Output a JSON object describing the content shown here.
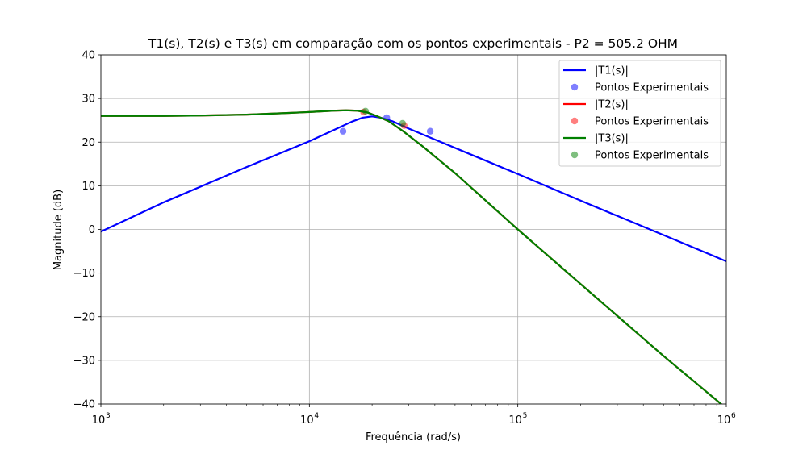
{
  "chart_data": {
    "type": "line",
    "title": "T1(s), T2(s) e T3(s) em comparação com os pontos experimentais - P2 = 505.2 OHM",
    "xlabel": "Frequência (rad/s)",
    "ylabel": "Magnitude (dB)",
    "xscale": "log",
    "xlim": [
      1000,
      1000000
    ],
    "ylim": [
      -40,
      40
    ],
    "x_ticks": [
      {
        "base": "10",
        "exp": "3"
      },
      {
        "base": "10",
        "exp": "4"
      },
      {
        "base": "10",
        "exp": "5"
      },
      {
        "base": "10",
        "exp": "6"
      }
    ],
    "y_ticks": [
      "40",
      "30",
      "20",
      "10",
      "0",
      "−10",
      "−20",
      "−30",
      "−40"
    ],
    "grid": true,
    "legend_position": "top-right",
    "series": [
      {
        "name": "|T1(s)|",
        "kind": "line",
        "color": "#0000ff",
        "x": [
          1000,
          2000,
          5000,
          10000,
          13000,
          16000,
          18000,
          20000,
          22000,
          25000,
          30000,
          40000,
          60000,
          100000,
          200000,
          500000,
          1000000
        ],
        "y": [
          -0.5,
          6.2,
          14.3,
          20.2,
          22.7,
          24.7,
          25.6,
          25.9,
          25.6,
          24.8,
          23.1,
          20.6,
          17.1,
          12.7,
          6.6,
          -1.3,
          -7.3
        ]
      },
      {
        "name": "Pontos Experimentais",
        "kind": "points",
        "color": "#0000ff",
        "x": [
          14500,
          23500,
          38000
        ],
        "y": [
          22.5,
          25.6,
          22.5
        ]
      },
      {
        "name": "|T2(s)|",
        "kind": "line",
        "color": "#ff0000",
        "x": [
          1000,
          2000,
          3000,
          5000,
          8000,
          10000,
          13000,
          15000,
          17000,
          19000,
          21000,
          24000,
          28000,
          35000,
          50000,
          100000,
          200000,
          500000,
          1000000
        ],
        "y": [
          26.0,
          26.0,
          26.1,
          26.3,
          26.7,
          26.9,
          27.2,
          27.3,
          27.2,
          26.8,
          26.0,
          24.8,
          22.6,
          19.0,
          12.9,
          0.0,
          -12.5,
          -29.0,
          -41.0
        ]
      },
      {
        "name": "Pontos Experimentais",
        "kind": "points",
        "color": "#ff0000",
        "x": [
          18200,
          28500
        ],
        "y": [
          26.9,
          23.8
        ]
      },
      {
        "name": "|T3(s)|",
        "kind": "line",
        "color": "#008000",
        "x": [
          1000,
          2000,
          3000,
          5000,
          8000,
          10000,
          13000,
          15000,
          17000,
          19000,
          21000,
          24000,
          28000,
          35000,
          50000,
          100000,
          200000,
          500000,
          1000000
        ],
        "y": [
          26.0,
          26.0,
          26.1,
          26.3,
          26.7,
          26.9,
          27.2,
          27.3,
          27.2,
          26.8,
          26.0,
          24.8,
          22.6,
          19.0,
          12.9,
          0.0,
          -12.5,
          -29.0,
          -41.0
        ]
      },
      {
        "name": "Pontos Experimentais",
        "kind": "points",
        "color": "#008000",
        "x": [
          18600,
          28000
        ],
        "y": [
          27.1,
          24.3
        ]
      }
    ]
  }
}
